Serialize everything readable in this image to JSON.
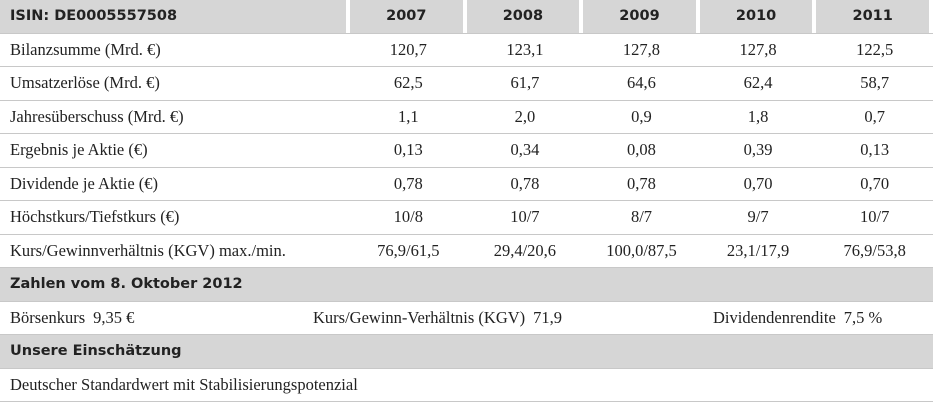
{
  "table": {
    "header": [
      "ISIN: DE0005557508",
      "2007",
      "2008",
      "2009",
      "2010",
      "2011"
    ],
    "rows": [
      [
        "Bilanzsumme (Mrd. €)",
        "120,7",
        "123,1",
        "127,8",
        "127,8",
        "122,5"
      ],
      [
        "Umsatzerlöse (Mrd. €)",
        "62,5",
        "61,7",
        "64,6",
        "62,4",
        "58,7"
      ],
      [
        "Jahresüberschuss (Mrd. €)",
        "1,1",
        "2,0",
        "0,9",
        "1,8",
        "0,7"
      ],
      [
        "Ergebnis je Aktie (€)",
        "0,13",
        "0,34",
        "0,08",
        "0,39",
        "0,13"
      ],
      [
        "Dividende je Aktie (€)",
        "0,78",
        "0,78",
        "0,78",
        "0,70",
        "0,70"
      ],
      [
        "Höchstkurs/Tiefstkurs (€)",
        "10/8",
        "10/7",
        "8/7",
        "9/7",
        "10/7"
      ],
      [
        "Kurs/Gewinnverhältnis (KGV) max./min.",
        "76,9/61,5",
        "29,4/20,6",
        "100,0/87,5",
        "23,1/17,9",
        "76,9/53,8"
      ]
    ]
  },
  "figures": {
    "title": "Zahlen vom 8. Oktober 2012",
    "items": [
      {
        "label": "Börsenkurs",
        "value": "9,35 €"
      },
      {
        "label": "Kurs/Gewinn-Verhältnis (KGV)",
        "value": "71,9"
      },
      {
        "label": "Dividendenrendite",
        "value": "7,5 %"
      }
    ]
  },
  "assessment": {
    "title": "Unsere Einschätzung",
    "text": "Deutscher Standardwert mit Stabilisierungspotenzial"
  }
}
